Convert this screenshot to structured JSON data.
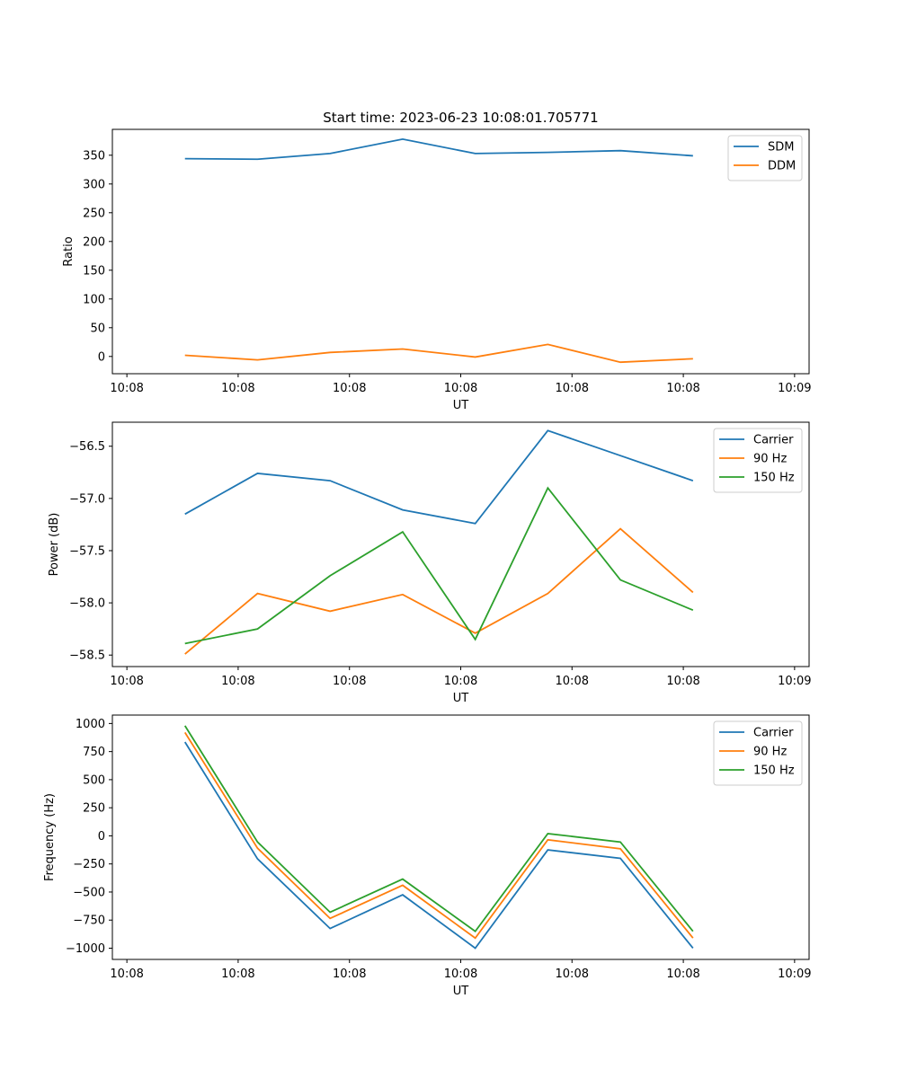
{
  "figure_title": "Start time: 2023-06-23 10:08:01.705771",
  "colors": {
    "blue": "#1f77b4",
    "orange": "#ff7f0e",
    "green": "#2ca02c"
  },
  "chart_data": [
    {
      "type": "line",
      "title": "Start time: 2023-06-23 10:08:01.705771",
      "xlabel": "UT",
      "ylabel": "Ratio",
      "x_tick_labels": [
        "10:08",
        "10:08",
        "10:08",
        "10:08",
        "10:08",
        "10:08",
        "10:09"
      ],
      "y_ticks": [
        0,
        50,
        100,
        150,
        200,
        250,
        300,
        350
      ],
      "ylim": [
        -30,
        395
      ],
      "legend_position": "top-right",
      "x": [
        1,
        2,
        3,
        4,
        5,
        6,
        7,
        8
      ],
      "series": [
        {
          "name": "SDM",
          "color": "#1f77b4",
          "values": [
            344,
            343,
            353,
            378,
            353,
            355,
            358,
            349
          ]
        },
        {
          "name": "DDM",
          "color": "#ff7f0e",
          "values": [
            2,
            -6,
            7,
            13,
            -1,
            21,
            -10,
            -4
          ]
        }
      ]
    },
    {
      "type": "line",
      "title": "",
      "xlabel": "UT",
      "ylabel": "Power (dB)",
      "x_tick_labels": [
        "10:08",
        "10:08",
        "10:08",
        "10:08",
        "10:08",
        "10:08",
        "10:09"
      ],
      "y_ticks": [
        -58.5,
        -58.0,
        -57.5,
        -57.0,
        -56.5
      ],
      "y_tick_labels": [
        "−58.5",
        "−58.0",
        "−57.5",
        "−57.0",
        "−56.5"
      ],
      "ylim": [
        -58.61,
        -56.27
      ],
      "legend_position": "top-right",
      "x": [
        1,
        2,
        3,
        4,
        5,
        6,
        7,
        8
      ],
      "series": [
        {
          "name": "Carrier",
          "color": "#1f77b4",
          "values": [
            -57.15,
            -56.76,
            -56.83,
            -57.11,
            -57.24,
            -56.35,
            -56.59,
            -56.83
          ]
        },
        {
          "name": "90 Hz",
          "color": "#ff7f0e",
          "values": [
            -58.49,
            -57.91,
            -58.08,
            -57.92,
            -58.29,
            -57.91,
            -57.29,
            -57.9
          ]
        },
        {
          "name": "150 Hz",
          "color": "#2ca02c",
          "values": [
            -58.39,
            -58.25,
            -57.74,
            -57.32,
            -58.35,
            -56.9,
            -57.78,
            -58.07
          ]
        }
      ]
    },
    {
      "type": "line",
      "title": "",
      "xlabel": "UT",
      "ylabel": "Frequency (Hz)",
      "x_tick_labels": [
        "10:08",
        "10:08",
        "10:08",
        "10:08",
        "10:08",
        "10:08",
        "10:09"
      ],
      "y_ticks": [
        -1000,
        -750,
        -500,
        -250,
        0,
        250,
        500,
        750,
        1000
      ],
      "y_tick_labels": [
        "−1000",
        "−750",
        "−500",
        "−250",
        "0",
        "250",
        "500",
        "750",
        "1000"
      ],
      "ylim": [
        -1100,
        1075
      ],
      "legend_position": "top-right",
      "x": [
        1,
        2,
        3,
        4,
        5,
        6,
        7,
        8
      ],
      "series": [
        {
          "name": "Carrier",
          "color": "#1f77b4",
          "values": [
            835,
            -205,
            -825,
            -525,
            -1000,
            -125,
            -200,
            -1000
          ]
        },
        {
          "name": "90 Hz",
          "color": "#ff7f0e",
          "values": [
            920,
            -110,
            -735,
            -440,
            -910,
            -35,
            -115,
            -910
          ]
        },
        {
          "name": "150 Hz",
          "color": "#2ca02c",
          "values": [
            980,
            -55,
            -680,
            -385,
            -850,
            20,
            -55,
            -850
          ]
        }
      ]
    }
  ]
}
